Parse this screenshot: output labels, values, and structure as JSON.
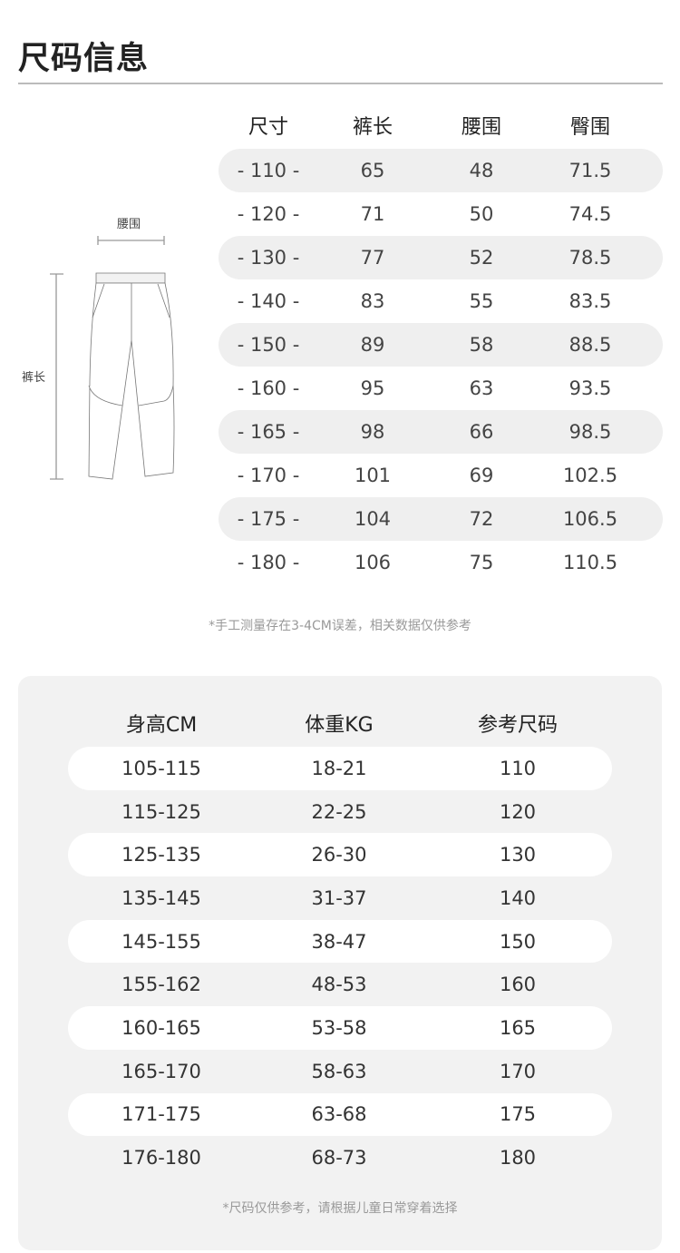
{
  "title": "尺码信息",
  "diagram": {
    "waist_label": "腰围",
    "length_label": "裤长"
  },
  "size_table": {
    "headers": [
      "尺寸",
      "裤长",
      "腰围",
      "臀围"
    ],
    "rows": [
      [
        "- 110 -",
        "65",
        "48",
        "71.5"
      ],
      [
        "- 120 -",
        "71",
        "50",
        "74.5"
      ],
      [
        "- 130 -",
        "77",
        "52",
        "78.5"
      ],
      [
        "- 140 -",
        "83",
        "55",
        "83.5"
      ],
      [
        "- 150 -",
        "89",
        "58",
        "88.5"
      ],
      [
        "- 160 -",
        "95",
        "63",
        "93.5"
      ],
      [
        "- 165 -",
        "98",
        "66",
        "98.5"
      ],
      [
        "- 170 -",
        "101",
        "69",
        "102.5"
      ],
      [
        "- 175 -",
        "104",
        "72",
        "106.5"
      ],
      [
        "- 180 -",
        "106",
        "75",
        "110.5"
      ]
    ],
    "note": "*手工测量存在3-4CM误差，相关数据仅供参考"
  },
  "recommend_table": {
    "headers": [
      "身高CM",
      "体重KG",
      "参考尺码"
    ],
    "rows": [
      [
        "105-115",
        "18-21",
        "110"
      ],
      [
        "115-125",
        "22-25",
        "120"
      ],
      [
        "125-135",
        "26-30",
        "130"
      ],
      [
        "135-145",
        "31-37",
        "140"
      ],
      [
        "145-155",
        "38-47",
        "150"
      ],
      [
        "155-162",
        "48-53",
        "160"
      ],
      [
        "160-165",
        "53-58",
        "165"
      ],
      [
        "165-170",
        "58-63",
        "170"
      ],
      [
        "171-175",
        "63-68",
        "175"
      ],
      [
        "176-180",
        "68-73",
        "180"
      ]
    ],
    "note": "*尺码仅供参考，请根据儿童日常穿着选择"
  }
}
